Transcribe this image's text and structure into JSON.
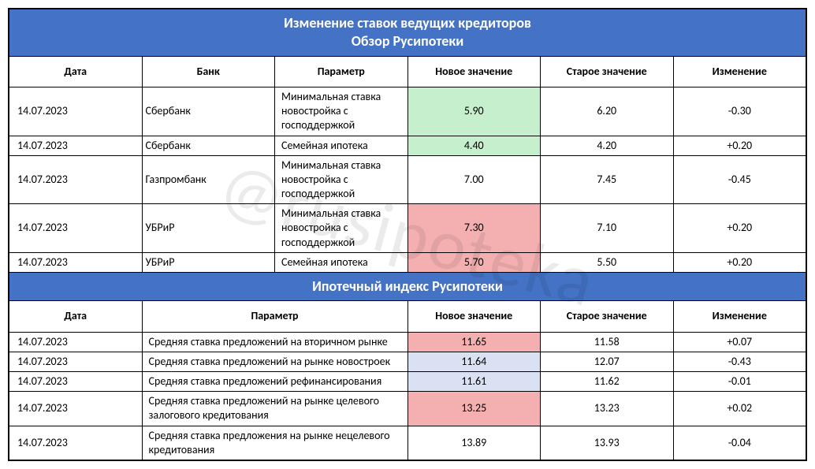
{
  "watermark": "@rusipoteka",
  "colors": {
    "header_bg": "#4472c4",
    "header_text": "#ffffff",
    "border": "#000000",
    "hl_green": "#c6efce",
    "hl_red": "#f4b0b0",
    "hl_blue": "#d9e1f2"
  },
  "table1": {
    "title_line1": "Изменение ставок ведущих кредиторов",
    "title_line2": "Обзор Русипотеки",
    "columns": {
      "date": "Дата",
      "bank": "Банк",
      "param": "Параметр",
      "new": "Новое значение",
      "old": "Старое значение",
      "change": "Изменение"
    },
    "rows": [
      {
        "date": "14.07.2023",
        "bank": "Сбербанк",
        "param": "Минимальная ставка новостройка с господдержкой",
        "new": "5.90",
        "new_hl": "green",
        "old": "6.20",
        "change": "-0.30"
      },
      {
        "date": "14.07.2023",
        "bank": "Сбербанк",
        "param": "Семейная ипотека",
        "new": "4.40",
        "new_hl": "green",
        "old": "4.20",
        "change": "+0.20"
      },
      {
        "date": "14.07.2023",
        "bank": "Газпромбанк",
        "param": "Минимальная ставка новостройка с господдержкой",
        "new": "7.00",
        "new_hl": "",
        "old": "7.45",
        "change": "-0.45"
      },
      {
        "date": "14.07.2023",
        "bank": "УБРиР",
        "param": "Минимальная ставка новостройка с господдержкой",
        "new": "7.30",
        "new_hl": "red",
        "old": "7.10",
        "change": "+0.20"
      },
      {
        "date": "14.07.2023",
        "bank": "УБРиР",
        "param": "Семейная ипотека",
        "new": "5.70",
        "new_hl": "red",
        "old": "5.50",
        "change": "+0.20"
      }
    ]
  },
  "table2": {
    "title": "Ипотечный индекс Русипотеки",
    "columns": {
      "date": "Дата",
      "param": "Параметр",
      "new": "Новое значение",
      "old": "Старое значение",
      "change": "Изменение"
    },
    "rows": [
      {
        "date": "14.07.2023",
        "param": "Средняя ставка предложений на вторичном рынке",
        "new": "11.65",
        "new_hl": "red",
        "old": "11.58",
        "change": "+0.07"
      },
      {
        "date": "14.07.2023",
        "param": "Средняя ставка предложений на рынке новостроек",
        "new": "11.64",
        "new_hl": "blue",
        "old": "12.07",
        "change": "-0.43"
      },
      {
        "date": "14.07.2023",
        "param": "Средняя ставка предложений рефинансирования",
        "new": "11.61",
        "new_hl": "blue",
        "old": "11.62",
        "change": "-0.01"
      },
      {
        "date": "14.07.2023",
        "param": "Средняя ставка предложений на рынке целевого залогового кредитования",
        "new": "13.25",
        "new_hl": "red",
        "old": "13.23",
        "change": "+0.02"
      },
      {
        "date": "14.07.2023",
        "param": "Средняя ставка предложения на рынке нецелевого кредитования",
        "new": "13.89",
        "new_hl": "",
        "old": "13.93",
        "change": "-0.04"
      }
    ]
  }
}
